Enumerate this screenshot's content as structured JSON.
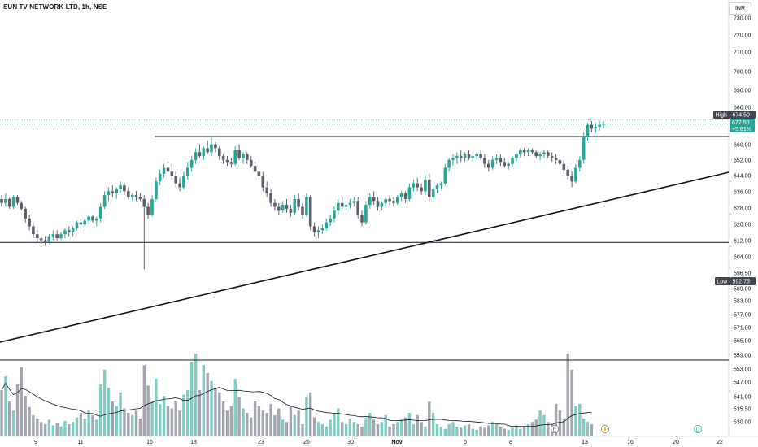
{
  "header": {
    "symbol_title": "SUN TV NETWORK LTD, 1h, NSE",
    "currency": "INR"
  },
  "labels": {
    "high_label": "High",
    "high_value": "674.50",
    "last_value": "672.50",
    "change_pct": "+5.81%",
    "low_label": "Low",
    "low_value": "592.75"
  },
  "colors": {
    "up": "#26a69a",
    "down": "#5d606b",
    "vol_up": "#80cbc4",
    "vol_down": "#a3a6af",
    "line": "#131722",
    "label_bg": "#434651",
    "last_bg": "#26a69a",
    "bg": "#ffffff"
  },
  "chart_data": {
    "type": "candlestick",
    "title": "SUN TV NETWORK LTD, 1h, NSE",
    "price_axis_ticks": [
      "730.00",
      "720.00",
      "710.00",
      "700.00",
      "690.00",
      "680.00",
      "668.00",
      "660.00",
      "652.00",
      "644.00",
      "636.00",
      "628.00",
      "620.00",
      "612.00",
      "604.00",
      "596.50",
      "589.00",
      "583.00",
      "577.00",
      "571.00",
      "565.00",
      "559.00",
      "553.00",
      "547.00",
      "541.00",
      "535.50",
      "530.00"
    ],
    "x_axis_labels": [
      "9",
      "11",
      "16",
      "18",
      "23",
      "26",
      "30",
      "Nov",
      "6",
      "8",
      "13",
      "16",
      "20",
      "22"
    ],
    "ylim": [
      592.75,
      731
    ],
    "ohlc_hourly": [
      [
        634,
        636,
        630,
        632
      ],
      [
        632,
        637,
        630,
        634
      ],
      [
        634,
        635,
        629,
        630
      ],
      [
        630,
        636,
        629,
        635
      ],
      [
        635,
        636,
        631,
        632
      ],
      [
        632,
        633,
        628,
        629
      ],
      [
        629,
        630,
        622,
        624
      ],
      [
        624,
        626,
        618,
        620
      ],
      [
        620,
        622,
        614,
        616
      ],
      [
        616,
        618,
        612,
        614
      ],
      [
        614,
        616,
        611,
        613
      ],
      [
        613,
        615,
        610,
        612
      ],
      [
        612,
        616,
        611,
        615
      ],
      [
        615,
        618,
        613,
        616
      ],
      [
        616,
        618,
        613,
        614
      ],
      [
        614,
        617,
        613,
        616
      ],
      [
        616,
        619,
        614,
        618
      ],
      [
        618,
        620,
        615,
        617
      ],
      [
        617,
        620,
        615,
        619
      ],
      [
        619,
        623,
        618,
        622
      ],
      [
        622,
        624,
        619,
        621
      ],
      [
        621,
        624,
        620,
        623
      ],
      [
        623,
        626,
        621,
        625
      ],
      [
        625,
        626,
        622,
        623
      ],
      [
        623,
        625,
        620,
        624
      ],
      [
        624,
        632,
        622,
        630
      ],
      [
        630,
        638,
        629,
        636
      ],
      [
        636,
        640,
        633,
        638
      ],
      [
        638,
        641,
        635,
        637
      ],
      [
        637,
        640,
        634,
        639
      ],
      [
        639,
        643,
        637,
        641
      ],
      [
        641,
        642,
        636,
        638
      ],
      [
        638,
        640,
        634,
        635
      ],
      [
        635,
        637,
        633,
        636
      ],
      [
        636,
        638,
        633,
        635
      ],
      [
        635,
        637,
        633,
        634
      ],
      [
        634,
        636,
        598,
        630
      ],
      [
        630,
        632,
        624,
        626
      ],
      [
        626,
        636,
        625,
        634
      ],
      [
        634,
        645,
        633,
        643
      ],
      [
        643,
        649,
        641,
        647
      ],
      [
        647,
        652,
        645,
        650
      ],
      [
        650,
        653,
        646,
        648
      ],
      [
        648,
        652,
        644,
        646
      ],
      [
        646,
        648,
        640,
        642
      ],
      [
        642,
        645,
        638,
        640
      ],
      [
        640,
        648,
        639,
        646
      ],
      [
        646,
        653,
        644,
        650
      ],
      [
        650,
        656,
        648,
        654
      ],
      [
        654,
        660,
        652,
        658
      ],
      [
        658,
        662,
        655,
        656
      ],
      [
        656,
        661,
        654,
        660
      ],
      [
        660,
        664,
        657,
        658
      ],
      [
        658,
        666,
        656,
        662
      ],
      [
        662,
        663,
        658,
        660
      ],
      [
        660,
        661,
        654,
        656
      ],
      [
        656,
        657,
        652,
        654
      ],
      [
        654,
        656,
        651,
        653
      ],
      [
        653,
        655,
        650,
        652
      ],
      [
        652,
        661,
        651,
        659
      ],
      [
        659,
        662,
        654,
        655
      ],
      [
        655,
        658,
        652,
        657
      ],
      [
        657,
        658,
        652,
        654
      ],
      [
        654,
        656,
        650,
        651
      ],
      [
        651,
        653,
        646,
        648
      ],
      [
        648,
        650,
        644,
        646
      ],
      [
        646,
        648,
        638,
        640
      ],
      [
        640,
        643,
        635,
        637
      ],
      [
        637,
        639,
        630,
        632
      ],
      [
        632,
        634,
        628,
        630
      ],
      [
        630,
        632,
        626,
        628
      ],
      [
        628,
        633,
        627,
        631
      ],
      [
        631,
        634,
        627,
        629
      ],
      [
        629,
        631,
        625,
        627
      ],
      [
        627,
        636,
        626,
        634
      ],
      [
        634,
        637,
        628,
        630
      ],
      [
        630,
        632,
        624,
        626
      ],
      [
        626,
        637,
        625,
        635
      ],
      [
        635,
        636,
        618,
        620
      ],
      [
        620,
        622,
        615,
        617
      ],
      [
        617,
        620,
        614,
        618
      ],
      [
        618,
        621,
        616,
        619
      ],
      [
        619,
        624,
        618,
        622
      ],
      [
        622,
        626,
        620,
        624
      ],
      [
        624,
        630,
        622,
        628
      ],
      [
        628,
        634,
        626,
        632
      ],
      [
        632,
        635,
        629,
        630
      ],
      [
        630,
        633,
        628,
        631
      ],
      [
        631,
        634,
        629,
        632
      ],
      [
        632,
        635,
        630,
        633
      ],
      [
        633,
        635,
        624,
        626
      ],
      [
        626,
        628,
        620,
        622
      ],
      [
        622,
        633,
        621,
        631
      ],
      [
        631,
        637,
        629,
        635
      ],
      [
        635,
        638,
        631,
        633
      ],
      [
        633,
        635,
        628,
        630
      ],
      [
        630,
        633,
        628,
        632
      ],
      [
        632,
        635,
        630,
        634
      ],
      [
        634,
        636,
        631,
        633
      ],
      [
        633,
        635,
        630,
        632
      ],
      [
        632,
        636,
        631,
        635
      ],
      [
        635,
        638,
        633,
        637
      ],
      [
        637,
        638,
        632,
        634
      ],
      [
        634,
        642,
        633,
        640
      ],
      [
        640,
        644,
        638,
        642
      ],
      [
        642,
        645,
        638,
        640
      ],
      [
        640,
        642,
        636,
        638
      ],
      [
        638,
        646,
        636,
        644
      ],
      [
        644,
        647,
        633,
        635
      ],
      [
        635,
        640,
        634,
        639
      ],
      [
        639,
        642,
        637,
        641
      ],
      [
        641,
        643,
        639,
        642
      ],
      [
        642,
        652,
        641,
        650
      ],
      [
        650,
        655,
        648,
        654
      ],
      [
        654,
        657,
        651,
        655
      ],
      [
        655,
        658,
        652,
        656
      ],
      [
        656,
        659,
        653,
        655
      ],
      [
        655,
        658,
        653,
        657
      ],
      [
        657,
        659,
        654,
        655
      ],
      [
        655,
        657,
        653,
        656
      ],
      [
        656,
        658,
        654,
        657
      ],
      [
        657,
        659,
        654,
        655
      ],
      [
        655,
        657,
        650,
        652
      ],
      [
        652,
        654,
        648,
        650
      ],
      [
        650,
        656,
        649,
        654
      ],
      [
        654,
        657,
        652,
        655
      ],
      [
        655,
        657,
        651,
        653
      ],
      [
        653,
        655,
        650,
        651
      ],
      [
        651,
        653,
        649,
        652
      ],
      [
        652,
        656,
        651,
        655
      ],
      [
        655,
        658,
        653,
        657
      ],
      [
        657,
        660,
        655,
        659
      ],
      [
        659,
        660,
        656,
        658
      ],
      [
        658,
        660,
        656,
        659
      ],
      [
        659,
        660,
        657,
        658
      ],
      [
        658,
        659,
        655,
        656
      ],
      [
        656,
        658,
        654,
        657
      ],
      [
        657,
        659,
        655,
        658
      ],
      [
        658,
        659,
        655,
        656
      ],
      [
        656,
        658,
        653,
        655
      ],
      [
        655,
        657,
        652,
        654
      ],
      [
        654,
        656,
        651,
        652
      ],
      [
        652,
        654,
        647,
        649
      ],
      [
        649,
        651,
        644,
        646
      ],
      [
        646,
        648,
        640,
        643
      ],
      [
        643,
        652,
        642,
        650
      ],
      [
        650,
        656,
        648,
        654
      ],
      [
        654,
        668,
        652,
        666
      ],
      [
        666,
        673,
        664,
        672
      ],
      [
        672,
        674,
        668,
        670
      ],
      [
        670,
        673,
        668,
        671
      ],
      [
        671,
        674,
        669,
        672
      ],
      [
        672,
        674,
        670,
        672.5
      ]
    ],
    "volume_relative": [
      0.4,
      0.52,
      0.3,
      0.22,
      0.45,
      0.6,
      0.35,
      0.25,
      0.18,
      0.15,
      0.12,
      0.1,
      0.14,
      0.09,
      0.11,
      0.08,
      0.13,
      0.1,
      0.12,
      0.16,
      0.2,
      0.15,
      0.22,
      0.18,
      0.14,
      0.45,
      0.58,
      0.42,
      0.3,
      0.26,
      0.38,
      0.24,
      0.2,
      0.18,
      0.22,
      0.15,
      0.62,
      0.44,
      0.3,
      0.5,
      0.28,
      0.35,
      0.26,
      0.24,
      0.3,
      0.22,
      0.36,
      0.4,
      0.65,
      0.72,
      0.4,
      0.62,
      0.55,
      0.48,
      0.42,
      0.38,
      0.3,
      0.22,
      0.26,
      0.5,
      0.34,
      0.24,
      0.2,
      0.16,
      0.3,
      0.26,
      0.22,
      0.2,
      0.28,
      0.18,
      0.24,
      0.14,
      0.12,
      0.26,
      0.18,
      0.22,
      0.1,
      0.34,
      0.38,
      0.16,
      0.12,
      0.1,
      0.08,
      0.14,
      0.2,
      0.24,
      0.12,
      0.1,
      0.15,
      0.12,
      0.1,
      0.08,
      0.16,
      0.2,
      0.14,
      0.1,
      0.12,
      0.18,
      0.08,
      0.1,
      0.12,
      0.14,
      0.16,
      0.2,
      0.1,
      0.18,
      0.12,
      0.08,
      0.3,
      0.2,
      0.1,
      0.08,
      0.06,
      0.1,
      0.12,
      0.08,
      0.07,
      0.09,
      0.1,
      0.06,
      0.05,
      0.08,
      0.07,
      0.09,
      0.12,
      0.1,
      0.08,
      0.06,
      0.05,
      0.07,
      0.09,
      0.06,
      0.08,
      0.1,
      0.12,
      0.14,
      0.22,
      0.18,
      0.12,
      0.1,
      0.28,
      0.22,
      0.15,
      0.72,
      0.58,
      0.26,
      0.28,
      0.15,
      0.12,
      0.1
    ],
    "horizontal_lines": [
      666.0,
      611.8
    ],
    "trendline": {
      "from": [
        0,
        590.5
      ],
      "to": [
        1,
        645.5
      ]
    },
    "volume_reference_line": "horizontal",
    "events": [
      "E",
      "⚡",
      "D"
    ]
  }
}
